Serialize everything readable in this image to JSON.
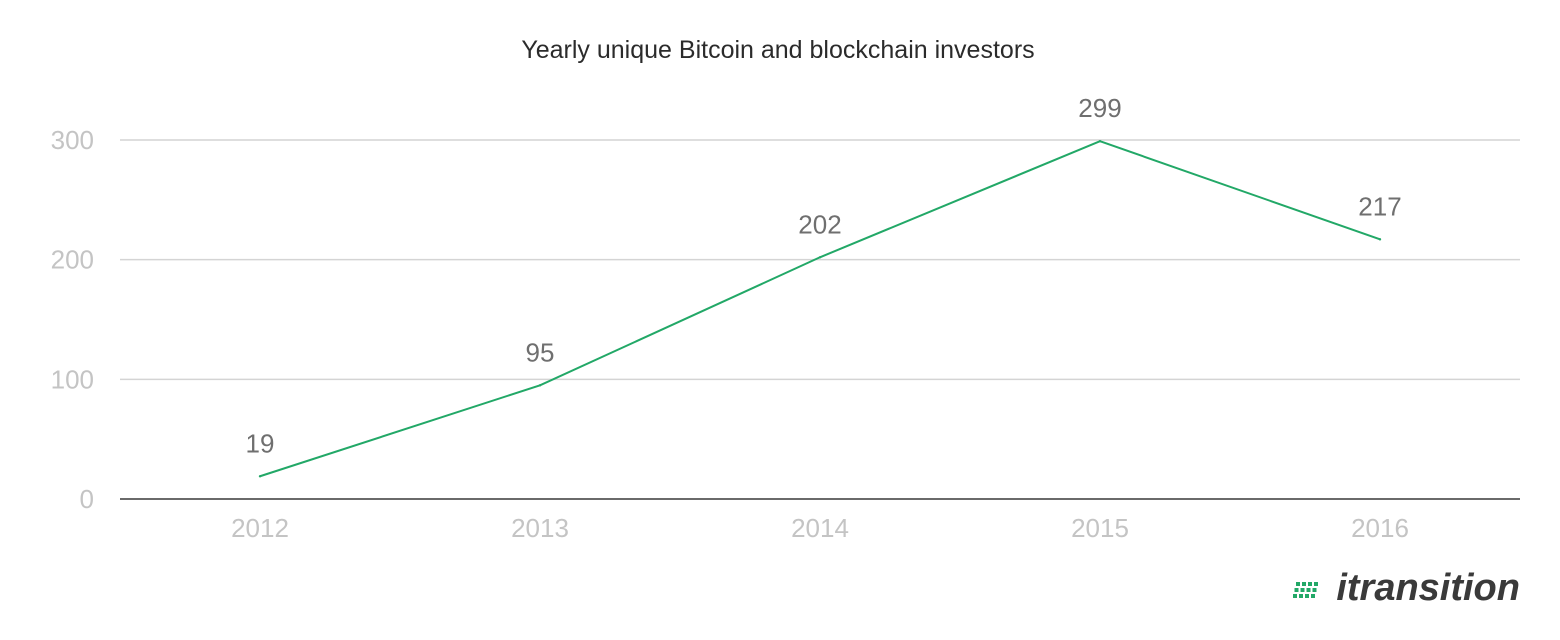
{
  "chart_data": {
    "type": "line",
    "title": "Yearly unique Bitcoin and blockchain investors",
    "xlabel": "",
    "ylabel": "",
    "categories": [
      "2012",
      "2013",
      "2014",
      "2015",
      "2016"
    ],
    "series": [
      {
        "values": [
          19,
          95,
          202,
          299,
          217
        ]
      }
    ],
    "data_labels": [
      "19",
      "95",
      "202",
      "299",
      "217"
    ],
    "y_ticks": [
      "0",
      "100",
      "200",
      "300"
    ],
    "ylim": [
      0,
      300
    ],
    "grid": true,
    "legend": "none"
  },
  "logo": {
    "text": "itransition"
  },
  "colors": {
    "series": "#22a867",
    "logo_text": "#3a3a3a",
    "logo_mark": "#22a867"
  }
}
